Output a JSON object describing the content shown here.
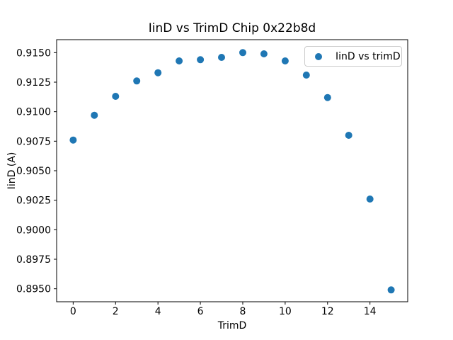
{
  "chart_data": {
    "type": "scatter",
    "title": "IinD vs TrimD Chip 0x22b8d",
    "xlabel": "TrimD",
    "ylabel": "IinD (A)",
    "legend_position": "upper right",
    "grid": false,
    "background_color": "#ffffff",
    "xlim": [
      -0.78,
      15.78
    ],
    "ylim": [
      0.8939,
      0.9161
    ],
    "xticks": [
      0,
      2,
      4,
      6,
      8,
      10,
      12,
      14
    ],
    "yticks": [
      "0.8950",
      "0.8975",
      "0.9000",
      "0.9025",
      "0.9050",
      "0.9075",
      "0.9100",
      "0.9125",
      "0.9150"
    ],
    "series": [
      {
        "name": "IinD vs trimD",
        "color": "#1f77b4",
        "marker": "circle",
        "x": [
          0,
          1,
          2,
          3,
          4,
          5,
          6,
          7,
          8,
          9,
          10,
          11,
          12,
          13,
          14,
          15
        ],
        "y": [
          0.9076,
          0.9097,
          0.9113,
          0.9126,
          0.9133,
          0.9143,
          0.9144,
          0.9146,
          0.915,
          0.9149,
          0.9143,
          0.9131,
          0.9112,
          0.908,
          0.9026,
          0.8949
        ]
      }
    ]
  }
}
